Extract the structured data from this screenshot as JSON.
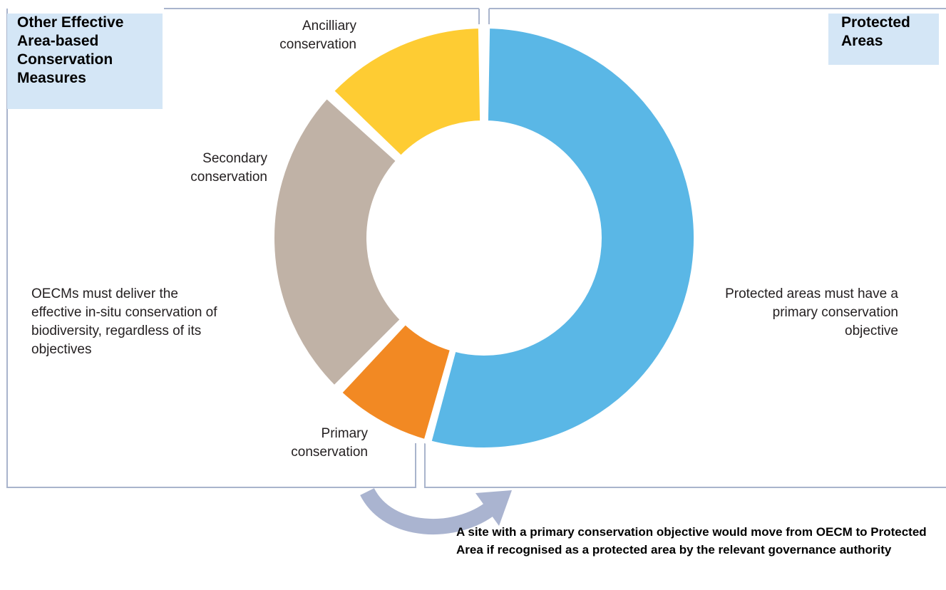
{
  "oecm": {
    "title": "Other Effective Area-based Conservation Measures",
    "description": "OECMs must deliver the effective in-situ conservation of biodiversity, regardless of its objectives"
  },
  "protected_areas": {
    "title": "Protected Areas",
    "description": "Protected areas must have a primary conservation objective"
  },
  "segments": [
    {
      "label": "Ancilliary conservation",
      "color": "#fecc33"
    },
    {
      "label": "Secondary conservation",
      "color": "#c0b2a6"
    },
    {
      "label": "Primary conservation",
      "color": "#f28923"
    },
    {
      "label": "",
      "color": "#5ab7e6"
    }
  ],
  "footnote": "A site with a primary conservation objective would move from OECM to Protected Area if recognised as a protected area by the relevant governance authority",
  "colors": {
    "frame": "#a9b4cc",
    "arrow": "#aab4d0",
    "title_bg": "#d4e6f6"
  }
}
